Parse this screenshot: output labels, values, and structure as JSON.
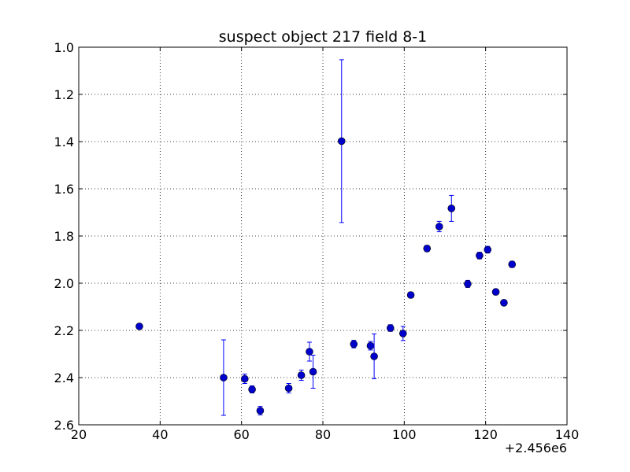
{
  "chart_data": {
    "type": "scatter",
    "title": "suspect object 217 field 8-1",
    "xlabel": "",
    "ylabel": "",
    "x_offset_label": "+2.456e6",
    "xlim": [
      20,
      140
    ],
    "ylim": [
      1.0,
      2.6
    ],
    "y_inverted": true,
    "grid": true,
    "x_ticks": [
      "20",
      "40",
      "60",
      "80",
      "100",
      "120",
      "140"
    ],
    "y_ticks": [
      "1.0",
      "1.2",
      "1.4",
      "1.6",
      "1.8",
      "2.0",
      "2.2",
      "2.4",
      "2.6"
    ],
    "marker_color": "#0000cc",
    "errorbar_color": "#0000ff",
    "points": [
      {
        "x": 34.9,
        "y": 2.183,
        "err": 0.01
      },
      {
        "x": 55.6,
        "y": 2.4,
        "err": 0.16
      },
      {
        "x": 60.8,
        "y": 2.405,
        "err": 0.02
      },
      {
        "x": 62.6,
        "y": 2.45,
        "err": 0.015
      },
      {
        "x": 64.6,
        "y": 2.54,
        "err": 0.018
      },
      {
        "x": 71.6,
        "y": 2.445,
        "err": 0.02
      },
      {
        "x": 74.7,
        "y": 2.39,
        "err": 0.022
      },
      {
        "x": 76.7,
        "y": 2.29,
        "err": 0.04
      },
      {
        "x": 77.6,
        "y": 2.375,
        "err": 0.07
      },
      {
        "x": 84.6,
        "y": 1.398,
        "err": 0.345
      },
      {
        "x": 87.6,
        "y": 2.258,
        "err": 0.016
      },
      {
        "x": 91.7,
        "y": 2.265,
        "err": 0.018
      },
      {
        "x": 92.6,
        "y": 2.31,
        "err": 0.095
      },
      {
        "x": 96.6,
        "y": 2.19,
        "err": 0.014
      },
      {
        "x": 99.7,
        "y": 2.213,
        "err": 0.03
      },
      {
        "x": 101.6,
        "y": 2.05,
        "err": 0.012
      },
      {
        "x": 105.6,
        "y": 1.853,
        "err": 0.013
      },
      {
        "x": 108.6,
        "y": 1.76,
        "err": 0.022
      },
      {
        "x": 111.6,
        "y": 1.683,
        "err": 0.055
      },
      {
        "x": 115.6,
        "y": 2.003,
        "err": 0.015
      },
      {
        "x": 118.5,
        "y": 1.883,
        "err": 0.014
      },
      {
        "x": 120.5,
        "y": 1.858,
        "err": 0.014
      },
      {
        "x": 122.5,
        "y": 2.037,
        "err": 0.012
      },
      {
        "x": 124.5,
        "y": 2.083,
        "err": 0.012
      },
      {
        "x": 126.5,
        "y": 1.92,
        "err": 0.013
      }
    ]
  }
}
